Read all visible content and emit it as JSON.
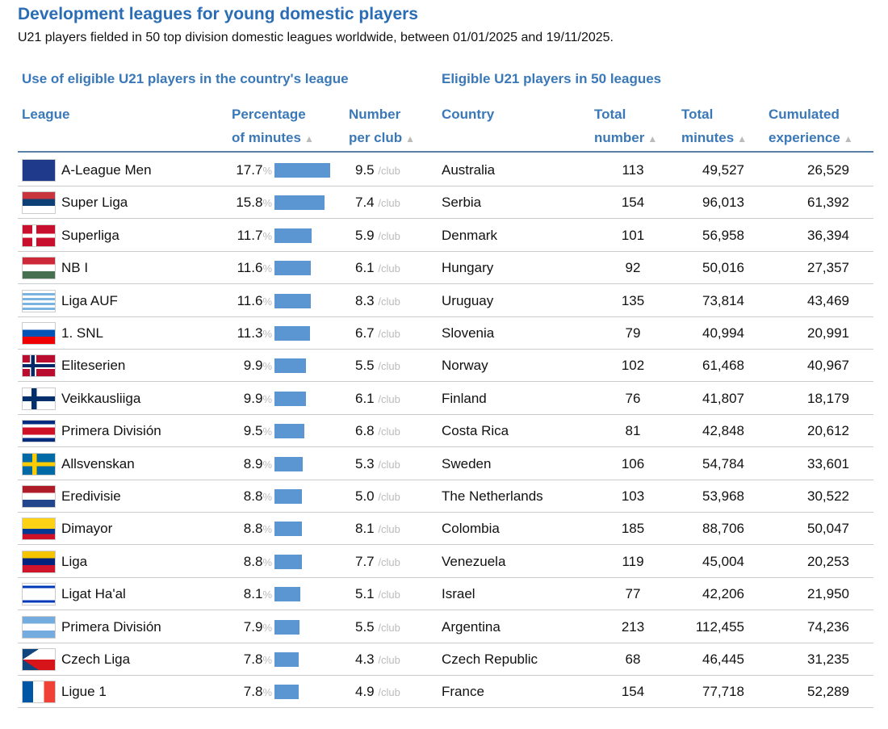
{
  "title": "Development leagues for young domestic players",
  "subtitle": "U21 players fielded in 50 top division domestic leagues worldwide, between 01/01/2025 and 19/11/2025.",
  "groups": {
    "left": "Use of eligible U21 players in the country's league",
    "right": "Eligible U21 players in 50 leagues"
  },
  "headers": {
    "league": "League",
    "pct1": "Percentage",
    "pct2": "of minutes",
    "pc1": "Number",
    "pc2": "per club",
    "country": "Country",
    "tn1": "Total",
    "tn2": "number",
    "tm1": "Total",
    "tm2": "minutes",
    "ce1": "Cumulated",
    "ce2": "experience",
    "sort_icon": "▲"
  },
  "units": {
    "pct": "%",
    "club": "/club"
  },
  "bar_color": "#5b96d2",
  "rows": [
    {
      "flag": "au",
      "league": "A-League Men",
      "pct": "17.7",
      "pc": "9.5",
      "country": "Australia",
      "tn": "113",
      "tm": "49,527",
      "ce": "26,529"
    },
    {
      "flag": "rs",
      "league": "Super Liga",
      "pct": "15.8",
      "pc": "7.4",
      "country": "Serbia",
      "tn": "154",
      "tm": "96,013",
      "ce": "61,392"
    },
    {
      "flag": "dk",
      "league": "Superliga",
      "pct": "11.7",
      "pc": "5.9",
      "country": "Denmark",
      "tn": "101",
      "tm": "56,958",
      "ce": "36,394"
    },
    {
      "flag": "hu",
      "league": "NB I",
      "pct": "11.6",
      "pc": "6.1",
      "country": "Hungary",
      "tn": "92",
      "tm": "50,016",
      "ce": "27,357"
    },
    {
      "flag": "uy",
      "league": "Liga AUF",
      "pct": "11.6",
      "pc": "8.3",
      "country": "Uruguay",
      "tn": "135",
      "tm": "73,814",
      "ce": "43,469"
    },
    {
      "flag": "si",
      "league": "1. SNL",
      "pct": "11.3",
      "pc": "6.7",
      "country": "Slovenia",
      "tn": "79",
      "tm": "40,994",
      "ce": "20,991"
    },
    {
      "flag": "no",
      "league": "Eliteserien",
      "pct": "9.9",
      "pc": "5.5",
      "country": "Norway",
      "tn": "102",
      "tm": "61,468",
      "ce": "40,967"
    },
    {
      "flag": "fi",
      "league": "Veikkausliiga",
      "pct": "9.9",
      "pc": "6.1",
      "country": "Finland",
      "tn": "76",
      "tm": "41,807",
      "ce": "18,179"
    },
    {
      "flag": "cr",
      "league": "Primera División",
      "pct": "9.5",
      "pc": "6.8",
      "country": "Costa Rica",
      "tn": "81",
      "tm": "42,848",
      "ce": "20,612"
    },
    {
      "flag": "se",
      "league": "Allsvenskan",
      "pct": "8.9",
      "pc": "5.3",
      "country": "Sweden",
      "tn": "106",
      "tm": "54,784",
      "ce": "33,601"
    },
    {
      "flag": "nl",
      "league": "Eredivisie",
      "pct": "8.8",
      "pc": "5.0",
      "country": "The Netherlands",
      "tn": "103",
      "tm": "53,968",
      "ce": "30,522"
    },
    {
      "flag": "co",
      "league": "Dimayor",
      "pct": "8.8",
      "pc": "8.1",
      "country": "Colombia",
      "tn": "185",
      "tm": "88,706",
      "ce": "50,047"
    },
    {
      "flag": "ve",
      "league": "Liga",
      "pct": "8.8",
      "pc": "7.7",
      "country": "Venezuela",
      "tn": "119",
      "tm": "45,004",
      "ce": "20,253"
    },
    {
      "flag": "il",
      "league": "Ligat Ha'al",
      "pct": "8.1",
      "pc": "5.1",
      "country": "Israel",
      "tn": "77",
      "tm": "42,206",
      "ce": "21,950"
    },
    {
      "flag": "ar",
      "league": "Primera División",
      "pct": "7.9",
      "pc": "5.5",
      "country": "Argentina",
      "tn": "213",
      "tm": "112,455",
      "ce": "74,236"
    },
    {
      "flag": "cz",
      "league": "Czech Liga",
      "pct": "7.8",
      "pc": "4.3",
      "country": "Czech Republic",
      "tn": "68",
      "tm": "46,445",
      "ce": "31,235"
    },
    {
      "flag": "fr",
      "league": "Ligue 1",
      "pct": "7.8",
      "pc": "4.9",
      "country": "France",
      "tn": "154",
      "tm": "77,718",
      "ce": "52,289"
    }
  ]
}
